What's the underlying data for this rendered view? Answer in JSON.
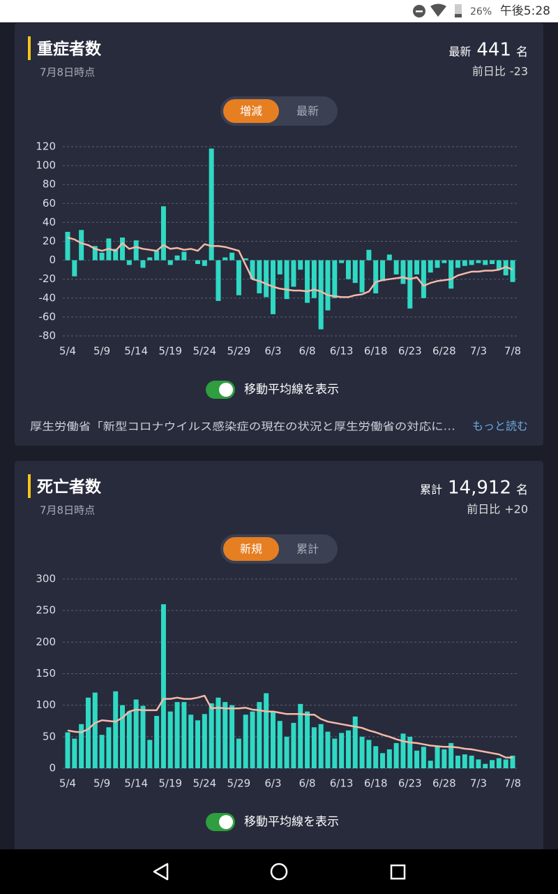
{
  "status_bar": {
    "battery": "26%",
    "time": "午後5:28"
  },
  "cards": [
    {
      "title": "重症者数",
      "as_of": "7月8日時点",
      "total_label": "最新",
      "total_value": "441",
      "unit": "名",
      "diff_label": "前日比",
      "diff_value": "-23",
      "tabs": [
        "増減",
        "最新"
      ],
      "toggle_label": "移動平均線を表示",
      "source": "厚生労働省「新型コロナウイルス感染症の現在の状況と厚生労働省の対応に…",
      "more": "もっと読む"
    },
    {
      "title": "死亡者数",
      "as_of": "7月8日時点",
      "total_label": "累計",
      "total_value": "14,912",
      "unit": "名",
      "diff_label": "前日比",
      "diff_value": "+20",
      "tabs": [
        "新規",
        "累計"
      ],
      "toggle_label": "移動平均線を表示"
    }
  ],
  "chart_data": [
    {
      "type": "bar",
      "categories": [
        "5/4",
        null,
        null,
        null,
        null,
        "5/9",
        null,
        null,
        null,
        null,
        "5/14",
        null,
        null,
        null,
        null,
        "5/19",
        null,
        null,
        null,
        null,
        "5/24",
        null,
        null,
        null,
        null,
        "5/29",
        null,
        null,
        null,
        null,
        "6/3",
        null,
        null,
        null,
        null,
        "6/8",
        null,
        null,
        null,
        null,
        "6/13",
        null,
        null,
        null,
        null,
        "6/18",
        null,
        null,
        null,
        null,
        "6/23",
        null,
        null,
        null,
        null,
        "6/28",
        null,
        null,
        null,
        null,
        "7/3",
        null,
        null,
        null,
        null,
        "7/8"
      ],
      "series": [
        {
          "type": "bar",
          "color": "#2fd9c4",
          "values": [
            30,
            -17,
            32,
            0,
            15,
            8,
            23,
            12,
            24,
            -5,
            21,
            -8,
            3,
            10,
            57,
            -5,
            5,
            9,
            0,
            -4,
            -6,
            118,
            -43,
            3,
            8,
            -37,
            2,
            -20,
            -35,
            -39,
            -57,
            -15,
            -41,
            -28,
            -10,
            -45,
            -40,
            -73,
            -53,
            -40,
            -3,
            -20,
            -24,
            -34,
            11,
            -35,
            -22,
            6,
            -15,
            -25,
            -51,
            -15,
            -40,
            -13,
            -8,
            -3,
            -30,
            -8,
            -6,
            -5,
            -3,
            -5,
            -4,
            -10,
            -16,
            -23
          ]
        },
        {
          "type": "line",
          "color": "#f5b9a9",
          "values": [
            24,
            22,
            18,
            16,
            12,
            10,
            12,
            10,
            18,
            12,
            14,
            12,
            11,
            10,
            16,
            12,
            13,
            11,
            12,
            10,
            17,
            15,
            15,
            14,
            12,
            10,
            -5,
            -20,
            -22,
            -25,
            -28,
            -30,
            -31,
            -32,
            -32,
            -33,
            -31,
            -33,
            -37,
            -38,
            -39,
            -39,
            -37,
            -36,
            -33,
            -23,
            -21,
            -20,
            -19,
            -18,
            -20,
            -18,
            -27,
            -24,
            -22,
            -21,
            -20,
            -16,
            -14,
            -12,
            -12,
            -11,
            -11,
            -10,
            -7,
            -10
          ]
        }
      ],
      "ylim": [
        -80,
        120
      ],
      "yticks": [
        -80,
        -60,
        -40,
        -20,
        0,
        20,
        40,
        60,
        80,
        100,
        120
      ],
      "grid": true
    },
    {
      "type": "bar",
      "categories": [
        "5/4",
        null,
        null,
        null,
        null,
        "5/9",
        null,
        null,
        null,
        null,
        "5/14",
        null,
        null,
        null,
        null,
        "5/19",
        null,
        null,
        null,
        null,
        "5/24",
        null,
        null,
        null,
        null,
        "5/29",
        null,
        null,
        null,
        null,
        "6/3",
        null,
        null,
        null,
        null,
        "6/8",
        null,
        null,
        null,
        null,
        "6/13",
        null,
        null,
        null,
        null,
        "6/18",
        null,
        null,
        null,
        null,
        "6/23",
        null,
        null,
        null,
        null,
        "6/28",
        null,
        null,
        null,
        null,
        "7/3",
        null,
        null,
        null,
        null,
        "7/8"
      ],
      "series": [
        {
          "type": "bar",
          "color": "#2fd9c4",
          "values": [
            57,
            47,
            70,
            112,
            120,
            53,
            65,
            122,
            100,
            90,
            109,
            99,
            45,
            83,
            260,
            90,
            105,
            105,
            85,
            76,
            86,
            103,
            112,
            105,
            100,
            47,
            85,
            90,
            105,
            119,
            90,
            75,
            50,
            72,
            102,
            90,
            65,
            70,
            58,
            47,
            56,
            60,
            82,
            50,
            45,
            35,
            24,
            30,
            40,
            55,
            50,
            28,
            34,
            12,
            35,
            30,
            40,
            20,
            22,
            20,
            14,
            7,
            13,
            16,
            14,
            20
          ]
        },
        {
          "type": "line",
          "color": "#f5b9a9",
          "values": [
            60,
            58,
            57,
            62,
            72,
            76,
            75,
            74,
            80,
            90,
            93,
            92,
            92,
            92,
            110,
            110,
            112,
            110,
            110,
            112,
            115,
            95,
            96,
            95,
            95,
            95,
            96,
            93,
            92,
            90,
            90,
            88,
            86,
            86,
            86,
            85,
            85,
            78,
            74,
            72,
            70,
            68,
            66,
            64,
            60,
            57,
            53,
            50,
            46,
            43,
            41,
            40,
            38,
            36,
            35,
            34,
            34,
            33,
            31,
            30,
            28,
            26,
            24,
            22,
            17,
            17
          ]
        }
      ],
      "ylim": [
        0,
        300
      ],
      "yticks": [
        0,
        50,
        100,
        150,
        200,
        250,
        300
      ],
      "grid": true
    }
  ]
}
